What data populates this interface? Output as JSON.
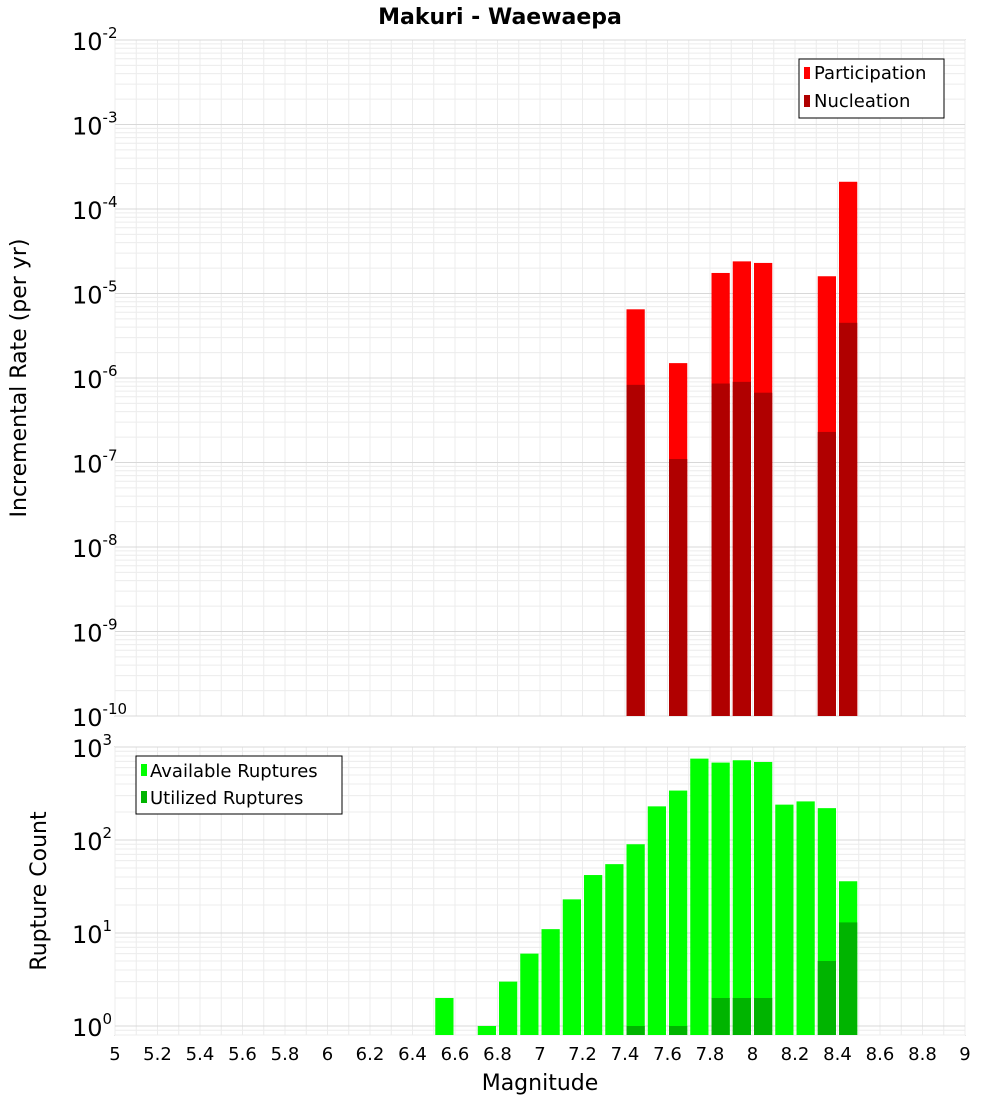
{
  "chart_data": [
    {
      "type": "bar",
      "title": "Makuri - Waewaepa",
      "ylabel": "Incremental Rate (per yr)",
      "xlabel": "",
      "xlim": [
        5,
        9
      ],
      "ylim": [
        1e-10,
        0.01
      ],
      "yscale": "log",
      "ytick_bases": [
        "10",
        "10",
        "10",
        "10",
        "10",
        "10",
        "10",
        "10",
        "10"
      ],
      "ytick_exponents": [
        "-10",
        "-9",
        "-8",
        "-7",
        "-6",
        "-5",
        "-4",
        "-3",
        "-2"
      ],
      "grid": true,
      "legend_position": "top-right",
      "x": [
        7.45,
        7.65,
        7.85,
        7.95,
        8.05,
        8.35,
        8.45
      ],
      "series": [
        {
          "name": "Participation",
          "color": "#ff0000",
          "values": [
            6.5e-06,
            1.5e-06,
            1.75e-05,
            2.4e-05,
            2.3e-05,
            1.6e-05,
            0.00021
          ]
        },
        {
          "name": "Nucleation",
          "color": "#b00000",
          "values": [
            8.3e-07,
            1.1e-07,
            8.6e-07,
            9e-07,
            6.7e-07,
            2.3e-07,
            4.5e-06
          ]
        }
      ]
    },
    {
      "type": "bar",
      "title": "",
      "ylabel": "Rupture Count",
      "xlabel": "Magnitude",
      "xlim": [
        5,
        9
      ],
      "ylim": [
        0.8,
        1000
      ],
      "yscale": "log",
      "ytick_bases": [
        "10",
        "10",
        "10",
        "10"
      ],
      "ytick_exponents": [
        "0",
        "1",
        "2",
        "3"
      ],
      "grid": true,
      "legend_position": "top-left",
      "xticks": [
        "5",
        "5.2",
        "5.4",
        "5.6",
        "5.8",
        "6",
        "6.2",
        "6.4",
        "6.6",
        "6.8",
        "7",
        "7.2",
        "7.4",
        "7.6",
        "7.8",
        "8",
        "8.2",
        "8.4",
        "8.6",
        "8.8",
        "9"
      ],
      "x": [
        6.55,
        6.75,
        6.85,
        6.95,
        7.05,
        7.15,
        7.25,
        7.35,
        7.45,
        7.55,
        7.65,
        7.75,
        7.85,
        7.95,
        8.05,
        8.15,
        8.25,
        8.35,
        8.45
      ],
      "series": [
        {
          "name": "Available Ruptures",
          "color": "#00ff00",
          "values": [
            2,
            1,
            3,
            6,
            11,
            23,
            42,
            55,
            90,
            230,
            340,
            750,
            680,
            720,
            690,
            240,
            260,
            220,
            36
          ]
        },
        {
          "name": "Utilized Ruptures",
          "color": "#00b400",
          "values": [
            0,
            0,
            0,
            0,
            0,
            0,
            0,
            0,
            1,
            0,
            1,
            0,
            2,
            2,
            2,
            0,
            0,
            5,
            13
          ]
        }
      ]
    }
  ]
}
